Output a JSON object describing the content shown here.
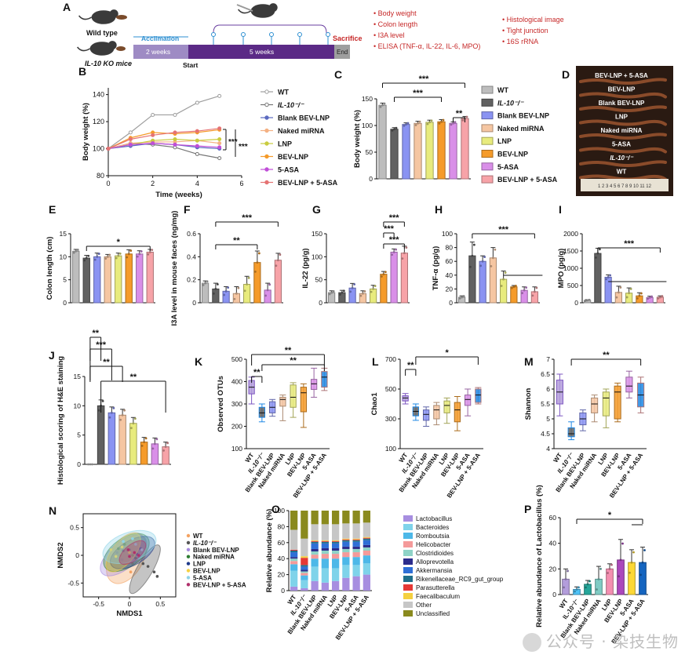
{
  "legend_colors": {
    "WT": "#bdbdbd",
    "IL10": "#616161",
    "Blank BEV-LNP": "#8a93f2",
    "Naked miRNA": "#f5c6a2",
    "LNP": "#e8eb7d",
    "BEV-LNP": "#f59b2a",
    "5-ASA": "#d98fe8",
    "BEV-LNP + 5-ASA": "#f7a3a8"
  },
  "group_labels": [
    "WT",
    "IL-10⁻/⁻",
    "Blank BEV-LNP",
    "Naked miRNA",
    "LNP",
    "BEV-LNP",
    "5-ASA",
    "BEV-LNP + 5-ASA"
  ],
  "panelA": {
    "letter": "A",
    "wild_type": "Wild type",
    "ko": "IL-10 KO mice",
    "acclimation": "Acclimation",
    "sacrifice": "Sacrifice",
    "seg1": "2 weeks",
    "seg2": "5 weeks",
    "end": "End",
    "start": "Start",
    "list1": [
      "Body weight",
      "Colon length",
      "I3A level",
      "ELISA  (TNF-α, IL-22, IL-6,  MPO)"
    ],
    "list2": [
      "Histological image",
      "Tight  junction",
      "16S rRNA"
    ]
  },
  "panelD": {
    "letter": "D",
    "labels": [
      "BEV-LNP + 5-ASA",
      "BEV-LNP",
      "Blank BEV-LNP",
      "LNP",
      "Naked miRNA",
      "5-ASA",
      "IL-10⁻/⁻",
      "WT"
    ],
    "ruler": "1 2 3 4 5 6 7 8 9 10 11 12"
  },
  "chart_data": [
    {
      "id": "B",
      "letter": "B",
      "type": "line",
      "xlabel": "Time (weeks)",
      "ylabel": "Body weight (%)",
      "xlim": [
        0,
        6
      ],
      "ylim": [
        80,
        145
      ],
      "xticks": [
        0,
        2,
        4,
        6
      ],
      "yticks": [
        80,
        100,
        120,
        140
      ],
      "x": [
        0,
        1,
        2,
        3,
        4,
        5
      ],
      "series": [
        {
          "name": "WT",
          "values": [
            100,
            112,
            125,
            125,
            134,
            139
          ],
          "color": "#9e9e9e",
          "marker": "circle-open"
        },
        {
          "name": "IL-10⁻/⁻",
          "values": [
            100,
            104,
            103,
            101,
            96,
            93
          ],
          "color": "#757575",
          "marker": "circle-open"
        },
        {
          "name": "Blank BEV-LNP",
          "values": [
            100,
            102,
            104,
            103,
            101,
            100
          ],
          "color": "#5c6bc0",
          "marker": "circle"
        },
        {
          "name": "Naked miRNA",
          "values": [
            100,
            104,
            105,
            105,
            106,
            104
          ],
          "color": "#f4b183",
          "marker": "square"
        },
        {
          "name": "LNP",
          "values": [
            100,
            103,
            106,
            107,
            106,
            107
          ],
          "color": "#c9cc3f",
          "marker": "triangle-down"
        },
        {
          "name": "BEV-LNP",
          "values": [
            100,
            108,
            112,
            111,
            112,
            114
          ],
          "color": "#f59b2a",
          "marker": "diamond"
        },
        {
          "name": "5-ASA",
          "values": [
            100,
            103,
            104,
            103,
            102,
            101
          ],
          "color": "#c04fd8",
          "marker": "circle"
        },
        {
          "name": "BEV-LNP + 5-ASA",
          "values": [
            100,
            107,
            110,
            112,
            113,
            115
          ],
          "color": "#e57373",
          "marker": "circle"
        }
      ],
      "annotations": [
        "***",
        "***"
      ]
    },
    {
      "id": "C",
      "letter": "C",
      "type": "bar",
      "ylabel": "Body weight (%)",
      "ylim": [
        0,
        150
      ],
      "yticks": [
        0,
        50,
        100,
        150
      ],
      "values": [
        138,
        93,
        102,
        104,
        106,
        107,
        104,
        113
      ],
      "errors": [
        4,
        3,
        3,
        4,
        4,
        4,
        3,
        4
      ],
      "annotations": [
        "***",
        "***",
        "**"
      ]
    },
    {
      "id": "E",
      "letter": "E",
      "type": "bar",
      "ylabel": "Colon length (cm)",
      "ylim": [
        0,
        15
      ],
      "yticks": [
        0,
        5,
        10,
        15
      ],
      "values": [
        11.2,
        9.7,
        10.0,
        10.0,
        10.2,
        10.6,
        10.6,
        11.0
      ],
      "errors": [
        0.4,
        0.6,
        0.8,
        0.5,
        0.6,
        0.9,
        0.7,
        0.6
      ],
      "annotations": [
        "*"
      ]
    },
    {
      "id": "F",
      "letter": "F",
      "type": "bar",
      "ylabel": "I3A level in mouse faces (ng/mg)",
      "ylim": [
        0,
        0.6
      ],
      "yticks": [
        0.0,
        0.2,
        0.4,
        0.6
      ],
      "values": [
        0.17,
        0.12,
        0.1,
        0.08,
        0.16,
        0.35,
        0.11,
        0.37
      ],
      "errors": [
        0.02,
        0.05,
        0.04,
        0.06,
        0.07,
        0.1,
        0.06,
        0.06
      ],
      "annotations": [
        "***",
        "**"
      ]
    },
    {
      "id": "G",
      "letter": "G",
      "type": "bar",
      "ylabel": "IL-22 (pg/g)",
      "ylim": [
        0,
        150
      ],
      "yticks": [
        0,
        50,
        100,
        150
      ],
      "values": [
        22,
        22,
        32,
        20,
        30,
        62,
        110,
        108
      ],
      "errors": [
        4,
        5,
        10,
        6,
        8,
        6,
        7,
        15
      ],
      "annotations": [
        "***",
        "***",
        "***"
      ]
    },
    {
      "id": "H",
      "letter": "H",
      "type": "bar",
      "ylabel": "TNF-α (pg/g)",
      "ylim": [
        0,
        100
      ],
      "yticks": [
        0,
        20,
        40,
        60,
        80,
        100
      ],
      "values": [
        8,
        68,
        60,
        65,
        34,
        23,
        18,
        16
      ],
      "errors": [
        2,
        20,
        8,
        15,
        12,
        2,
        5,
        7
      ],
      "annotations": [
        "***"
      ]
    },
    {
      "id": "I",
      "letter": "I",
      "type": "bar",
      "ylabel": "MPO (pg/g)",
      "ylim": [
        0,
        2000
      ],
      "yticks": [
        0,
        500,
        1000,
        1500,
        2000
      ],
      "values": [
        70,
        1430,
        740,
        300,
        280,
        200,
        150,
        160
      ],
      "errors": [
        20,
        150,
        70,
        180,
        150,
        90,
        40,
        40
      ],
      "annotations": [
        "***"
      ]
    },
    {
      "id": "J",
      "letter": "J",
      "type": "bar",
      "ylabel": "Histological scoring of H&E staining",
      "ylim": [
        0,
        15
      ],
      "yticks": [
        0,
        5,
        10,
        15
      ],
      "values": [
        0,
        10.0,
        8.8,
        8.4,
        7.0,
        3.8,
        3.5,
        3.0
      ],
      "errors": [
        0,
        1.0,
        1.0,
        1.0,
        1.0,
        0.8,
        1.0,
        0.8
      ],
      "annotations": [
        "**",
        "***",
        "**",
        "**"
      ]
    },
    {
      "id": "K",
      "letter": "K",
      "type": "box",
      "ylabel": "Observed OTUs",
      "ylim": [
        100,
        500
      ],
      "yticks": [
        100,
        200,
        300,
        400,
        500
      ],
      "boxes": [
        [
          300,
          345,
          375,
          405,
          420
        ],
        [
          220,
          240,
          260,
          285,
          300
        ],
        [
          245,
          260,
          285,
          310,
          320
        ],
        [
          225,
          290,
          320,
          330,
          340
        ],
        [
          240,
          285,
          330,
          385,
          395
        ],
        [
          195,
          265,
          350,
          375,
          390
        ],
        [
          330,
          365,
          390,
          410,
          460
        ],
        [
          360,
          375,
          420,
          445,
          460
        ]
      ],
      "annotations": [
        "**",
        "**",
        "**"
      ]
    },
    {
      "id": "L",
      "letter": "L",
      "type": "box",
      "ylabel": "Chao1",
      "ylim": [
        100,
        700
      ],
      "yticks": [
        100,
        300,
        500,
        700
      ],
      "boxes": [
        [
          400,
          420,
          440,
          455,
          470
        ],
        [
          290,
          320,
          350,
          380,
          400
        ],
        [
          250,
          290,
          330,
          360,
          380
        ],
        [
          260,
          300,
          360,
          390,
          410
        ],
        [
          270,
          340,
          390,
          420,
          440
        ],
        [
          220,
          280,
          360,
          410,
          450
        ],
        [
          320,
          390,
          430,
          460,
          500
        ],
        [
          400,
          410,
          460,
          500,
          510
        ]
      ],
      "annotations": [
        "**",
        "*"
      ]
    },
    {
      "id": "M",
      "letter": "M",
      "type": "box",
      "ylabel": "Shannon",
      "ylim": [
        4.0,
        7.0
      ],
      "yticks": [
        4.0,
        4.5,
        5.0,
        5.5,
        6.0,
        6.5,
        7.0
      ],
      "boxes": [
        [
          5.1,
          5.5,
          5.9,
          6.3,
          6.5
        ],
        [
          4.3,
          4.4,
          4.5,
          4.7,
          4.9
        ],
        [
          4.6,
          4.8,
          5.0,
          5.2,
          5.3
        ],
        [
          4.9,
          5.2,
          5.5,
          5.7,
          5.8
        ],
        [
          4.7,
          5.1,
          5.7,
          5.9,
          6.0
        ],
        [
          4.9,
          5.0,
          5.9,
          6.1,
          6.2
        ],
        [
          5.7,
          5.9,
          6.1,
          6.4,
          6.6
        ],
        [
          5.2,
          5.4,
          5.8,
          6.2,
          6.4
        ]
      ],
      "annotations": [
        "**"
      ]
    },
    {
      "id": "N",
      "letter": "N",
      "type": "scatter",
      "xlabel": "NMDS1",
      "ylabel": "NMDS2",
      "xlim": [
        -0.75,
        0.75
      ],
      "ylim": [
        -0.75,
        0.75
      ],
      "xticks": [
        -0.5,
        0,
        0.5
      ],
      "yticks": [
        -0.5,
        0,
        0.5
      ],
      "groups": [
        {
          "name": "WT",
          "cx": -0.05,
          "cy": -0.05,
          "rx": 0.45,
          "ry": 0.3,
          "angle": -60,
          "points": [
            [
              -0.15,
              0.0
            ],
            [
              0.05,
              -0.15
            ],
            [
              -0.05,
              0.12
            ],
            [
              0.02,
              -0.3
            ]
          ]
        },
        {
          "name": "IL-10⁻/⁻",
          "cx": 0.25,
          "cy": -0.25,
          "rx": 0.45,
          "ry": 0.14,
          "angle": -60,
          "points": [
            [
              0.3,
              -0.2
            ],
            [
              0.4,
              -0.3
            ],
            [
              0.22,
              -0.15
            ],
            [
              0.45,
              -0.38
            ]
          ]
        },
        {
          "name": "Blank BEV-LNP",
          "cx": -0.1,
          "cy": 0.0,
          "rx": 0.45,
          "ry": 0.24,
          "angle": -40,
          "points": [
            [
              -0.2,
              0.05
            ],
            [
              -0.05,
              0.1
            ],
            [
              -0.12,
              -0.08
            ],
            [
              0.0,
              0.02
            ]
          ]
        },
        {
          "name": "Naked miRNA",
          "cx": -0.05,
          "cy": 0.05,
          "rx": 0.42,
          "ry": 0.26,
          "angle": -35,
          "points": [
            [
              -0.18,
              0.12
            ],
            [
              0.05,
              0.0
            ],
            [
              -0.08,
              0.2
            ],
            [
              0.1,
              -0.05
            ]
          ]
        },
        {
          "name": "LNP",
          "cx": 0.05,
          "cy": 0.05,
          "rx": 0.4,
          "ry": 0.22,
          "angle": -30,
          "points": [
            [
              0.0,
              0.1
            ],
            [
              0.12,
              0.02
            ],
            [
              -0.1,
              0.08
            ],
            [
              0.18,
              0.12
            ]
          ]
        },
        {
          "name": "BEV-LNP",
          "cx": -0.1,
          "cy": 0.05,
          "rx": 0.38,
          "ry": 0.2,
          "angle": -50,
          "points": [
            [
              -0.22,
              -0.02
            ],
            [
              -0.12,
              0.15
            ],
            [
              0.0,
              0.05
            ],
            [
              -0.3,
              0.1
            ]
          ]
        },
        {
          "name": "5-ASA",
          "cx": 0.0,
          "cy": 0.15,
          "rx": 0.45,
          "ry": 0.26,
          "angle": -20,
          "points": [
            [
              0.1,
              0.2
            ],
            [
              -0.1,
              0.25
            ],
            [
              0.2,
              0.1
            ],
            [
              0.05,
              0.3
            ]
          ]
        },
        {
          "name": "BEV-LNP + 5-ASA",
          "cx": 0.05,
          "cy": 0.05,
          "rx": 0.26,
          "ry": 0.14,
          "angle": -40,
          "points": [
            [
              0.08,
              0.05
            ],
            [
              -0.02,
              0.1
            ],
            [
              0.15,
              0.0
            ],
            [
              0.0,
              -0.02
            ]
          ]
        }
      ]
    },
    {
      "id": "O",
      "letter": "O",
      "type": "stacked-bar",
      "ylabel": "Relative abundance (%)",
      "ylim": [
        0,
        100
      ],
      "yticks": [
        0,
        20,
        40,
        60,
        80,
        100
      ],
      "taxa": [
        "Lactobacillus",
        "Bacteroides",
        "Romboutsia",
        "Helicobacter",
        "Clostridioides",
        "Alloprevotella",
        "Akkermansia",
        "Rikenellaceae_RC9_gut_group",
        "Parasutterella",
        "Faecalibaculum",
        "Other",
        "Unclassified"
      ],
      "taxa_colors": [
        "#a78ee0",
        "#7fd3ea",
        "#4db8e8",
        "#f49a9a",
        "#8fd3c7",
        "#2c2c8c",
        "#2f6fd6",
        "#1f6f8b",
        "#e53935",
        "#f4d03f",
        "#c6c6c6",
        "#8a8a1e"
      ],
      "stacks": [
        [
          5,
          20,
          8,
          4,
          3,
          2,
          6,
          2,
          1,
          0,
          25,
          24
        ],
        [
          3,
          10,
          6,
          3,
          2,
          2,
          4,
          2,
          9,
          2,
          22,
          35
        ],
        [
          12,
          18,
          10,
          5,
          4,
          3,
          7,
          2,
          1,
          1,
          20,
          17
        ],
        [
          10,
          18,
          12,
          6,
          4,
          3,
          6,
          2,
          1,
          1,
          20,
          17
        ],
        [
          12,
          16,
          12,
          6,
          4,
          3,
          6,
          2,
          1,
          1,
          20,
          17
        ],
        [
          16,
          16,
          10,
          6,
          4,
          3,
          6,
          2,
          1,
          1,
          19,
          16
        ],
        [
          18,
          14,
          10,
          6,
          4,
          3,
          6,
          2,
          1,
          1,
          19,
          16
        ],
        [
          20,
          14,
          10,
          6,
          4,
          3,
          6,
          2,
          1,
          1,
          18,
          15
        ]
      ]
    },
    {
      "id": "P",
      "letter": "P",
      "type": "bar",
      "ylabel": "Relative abundance of Lactobacillus (%)",
      "ylim": [
        0,
        60
      ],
      "yticks": [
        0,
        20,
        40,
        60
      ],
      "values": [
        12,
        4,
        8,
        12,
        20,
        27,
        25,
        25
      ],
      "errors": [
        8,
        2,
        3,
        10,
        4,
        16,
        10,
        12
      ],
      "colors": [
        "#b39ddb",
        "#4fc3f7",
        "#26a69a",
        "#80cbc4",
        "#f48fb1",
        "#ab47bc",
        "#fdd835",
        "#1565c0"
      ],
      "annotations": [
        "*"
      ]
    }
  ],
  "watermark": "公众号 · 染技生物"
}
